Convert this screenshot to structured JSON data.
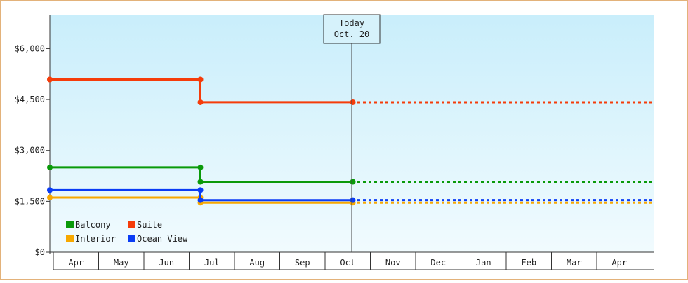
{
  "chart_data": {
    "type": "line",
    "step": true,
    "today_label": [
      "Today",
      "Oct. 20"
    ],
    "x_ticks": [
      "Apr",
      "May",
      "Jun",
      "Jul",
      "Aug",
      "Sep",
      "Oct",
      "Nov",
      "Dec",
      "Jan",
      "Feb",
      "Mar",
      "Apr"
    ],
    "y_ticks": [
      "$0",
      "$1,500",
      "$3,000",
      "$4,500",
      "$6,000"
    ],
    "ylim": [
      0,
      7000
    ],
    "legend_position": "bottom-left",
    "series": [
      {
        "name": "Balcony",
        "color": "#0a9a0a",
        "points": [
          [
            "Apr 1",
            2500
          ],
          [
            "Jul 1",
            2500
          ],
          [
            "Jul 1",
            2075
          ],
          [
            "Oct 20",
            2075
          ]
        ],
        "projected_value": 2075
      },
      {
        "name": "Suite",
        "color": "#f53c0a",
        "points": [
          [
            "Apr 1",
            5090
          ],
          [
            "Jul 1",
            5090
          ],
          [
            "Jul 1",
            4420
          ],
          [
            "Oct 20",
            4420
          ]
        ],
        "projected_value": 4420
      },
      {
        "name": "Interior",
        "color": "#f7a800",
        "points": [
          [
            "Apr 1",
            1610
          ],
          [
            "Jul 1",
            1610
          ],
          [
            "Jul 1",
            1460
          ],
          [
            "Oct 20",
            1460
          ]
        ],
        "projected_value": 1460
      },
      {
        "name": "Ocean View",
        "color": "#0a3cf5",
        "points": [
          [
            "Apr 1",
            1830
          ],
          [
            "Jul 1",
            1830
          ],
          [
            "Jul 1",
            1535
          ],
          [
            "Oct 20",
            1535
          ]
        ],
        "projected_value": 1535
      }
    ]
  }
}
